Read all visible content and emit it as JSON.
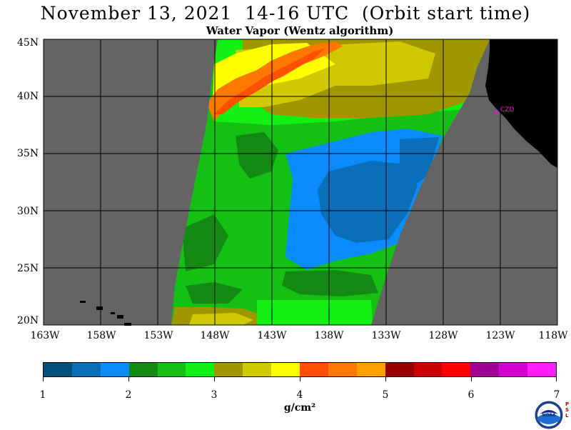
{
  "title": "November 13, 2021  14-16 UTC  (Orbit start time)",
  "subtitle": "Water Vapor (Wentz algorithm)",
  "lat_labels": [
    "45N",
    "40N",
    "35N",
    "30N",
    "25N",
    "20N"
  ],
  "lon_labels": [
    "163W",
    "158W",
    "153W",
    "148W",
    "143W",
    "138W",
    "133W",
    "128W",
    "123W",
    "118W"
  ],
  "station_label": "CZD",
  "colorbar": {
    "colors": [
      "#00507a",
      "#0a6fb8",
      "#0a8cff",
      "#148a14",
      "#14c014",
      "#14f014",
      "#a09600",
      "#d0c800",
      "#ffff00",
      "#ff5000",
      "#ff7800",
      "#ffa000",
      "#960000",
      "#c80000",
      "#ff0000",
      "#a00096",
      "#d200d2",
      "#ff1eff"
    ],
    "tick_labels": [
      "1",
      "2",
      "3",
      "4",
      "5",
      "6",
      "7"
    ]
  },
  "units": "g/cm²",
  "logo_text": "NOAA",
  "agency_text": "PSL",
  "colors": {
    "ocean_missing": "#646464",
    "land": "#000000",
    "station": "#ff00ff",
    "grid": "#000000"
  }
}
